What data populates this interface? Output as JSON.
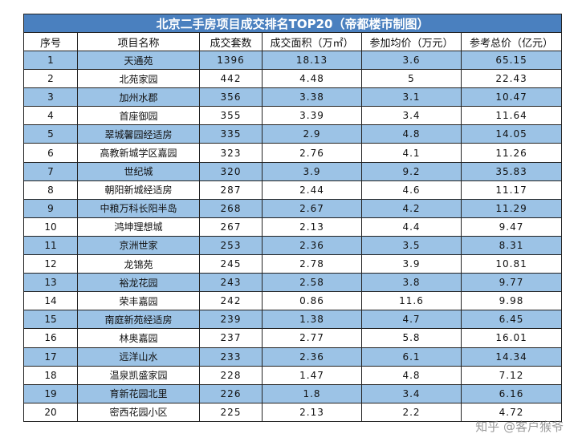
{
  "title": "北京二手房项目成交排名TOP20（帝都楼市制图）",
  "columns": [
    "序号",
    "项目名称",
    "成交套数",
    "成交面积（万㎡）",
    "参加均价（万元）",
    "参考总价（亿元）"
  ],
  "rows": [
    [
      "1",
      "天通苑",
      "1396",
      "18.13",
      "3.6",
      "65.15"
    ],
    [
      "2",
      "北苑家园",
      "442",
      "4.48",
      "5",
      "22.43"
    ],
    [
      "3",
      "加州水郡",
      "356",
      "3.38",
      "3.1",
      "10.47"
    ],
    [
      "4",
      "首座御园",
      "355",
      "3.39",
      "3.4",
      "11.64"
    ],
    [
      "5",
      "翠城馨园经适房",
      "335",
      "2.9",
      "4.8",
      "14.05"
    ],
    [
      "6",
      "高教新城学区嘉园",
      "323",
      "2.76",
      "4.1",
      "11.26"
    ],
    [
      "7",
      "世纪城",
      "320",
      "3.9",
      "9.2",
      "35.83"
    ],
    [
      "8",
      "朝阳新城经适房",
      "287",
      "2.44",
      "4.6",
      "11.17"
    ],
    [
      "9",
      "中粮万科长阳半岛",
      "268",
      "2.67",
      "4.2",
      "11.29"
    ],
    [
      "10",
      "鸿坤理想城",
      "267",
      "2.13",
      "4.4",
      "9.47"
    ],
    [
      "11",
      "京洲世家",
      "253",
      "2.36",
      "3.5",
      "8.31"
    ],
    [
      "12",
      "龙锦苑",
      "245",
      "2.78",
      "3.9",
      "10.81"
    ],
    [
      "13",
      "裕龙花园",
      "243",
      "2.58",
      "3.8",
      "9.77"
    ],
    [
      "14",
      "荣丰嘉园",
      "242",
      "0.86",
      "11.6",
      "9.98"
    ],
    [
      "15",
      "南庭新苑经适房",
      "239",
      "1.38",
      "4.7",
      "6.45"
    ],
    [
      "16",
      "林奥嘉园",
      "237",
      "2.77",
      "5.8",
      "16.01"
    ],
    [
      "17",
      "远洋山水",
      "233",
      "2.36",
      "6.1",
      "14.34"
    ],
    [
      "18",
      "温泉凯盛家园",
      "228",
      "1.47",
      "4.8",
      "7.12"
    ],
    [
      "19",
      "育新花园北里",
      "226",
      "1.8",
      "3.4",
      "6.16"
    ],
    [
      "20",
      "密西花园小区",
      "225",
      "2.13",
      "2.2",
      "4.72"
    ]
  ],
  "watermark": "知乎 @客户猴爷",
  "colors": {
    "title_bg": "#4a80bf",
    "stripe": "#9cc3e6",
    "border": "#222222"
  }
}
